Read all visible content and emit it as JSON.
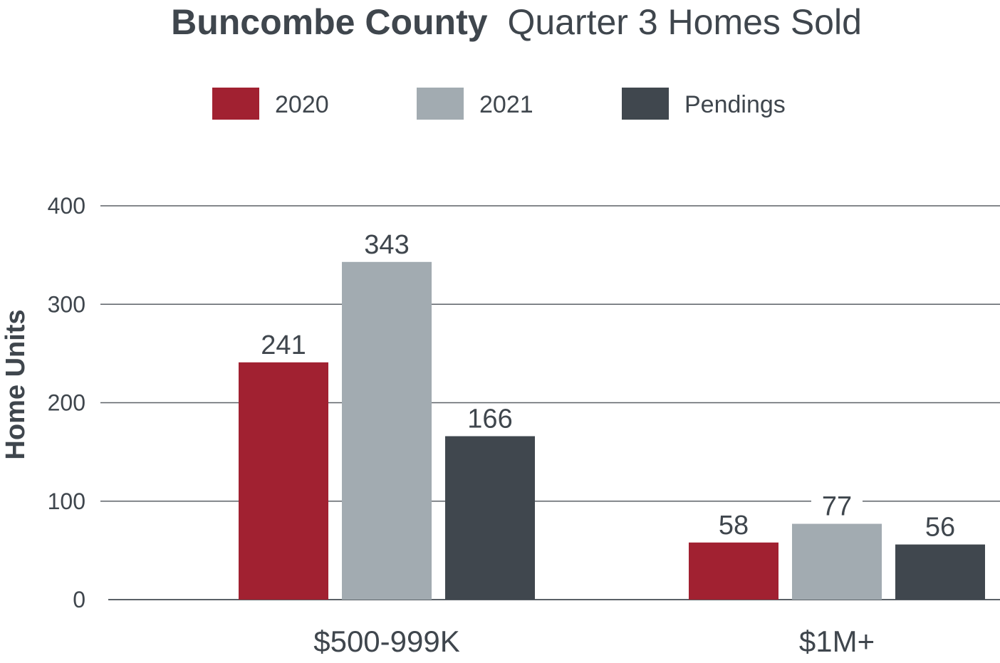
{
  "chart_data": {
    "type": "bar",
    "title_bold": "Buncombe County",
    "title_regular": "Quarter 3 Homes Sold",
    "ylabel": "Home Units",
    "xlabel": "",
    "ylim": [
      0,
      400
    ],
    "yticks": [
      0,
      100,
      200,
      300,
      400
    ],
    "grid": true,
    "legend_position": "top-center",
    "categories": [
      "$500-999K",
      "$1M+"
    ],
    "series": [
      {
        "name": "2020",
        "color": "#a12131",
        "values": [
          241,
          58
        ]
      },
      {
        "name": "2021",
        "color": "#a2abb1",
        "values": [
          343,
          77
        ]
      },
      {
        "name": "Pendings",
        "color": "#40474e",
        "values": [
          166,
          56
        ]
      }
    ],
    "colors": {
      "text": "#3f464d",
      "grid": "#5b6167",
      "background": "#ffffff"
    }
  }
}
